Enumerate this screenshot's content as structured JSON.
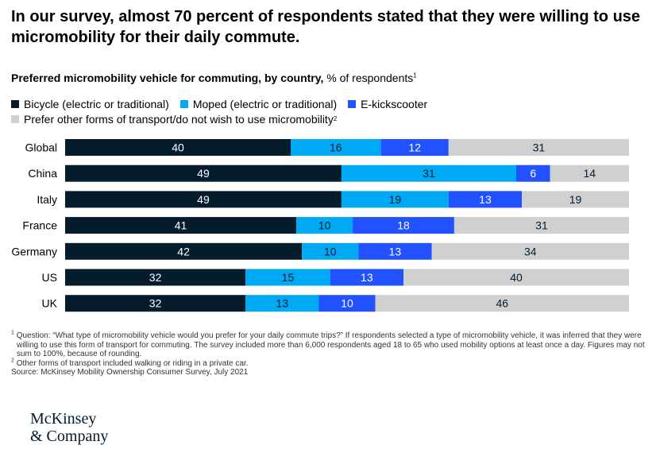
{
  "headline": "In our survey, almost 70 percent of respondents stated that they were willing to use micromobility for their daily commute.",
  "subtitle": {
    "bold": "Preferred micromobility vehicle for commuting, by country,",
    "unit": " % of respondents",
    "note_mark": "1"
  },
  "legend": [
    {
      "label": "Bicycle (electric or traditional)",
      "color": "#051c2c",
      "note_mark": ""
    },
    {
      "label": "Moped (electric or traditional)",
      "color": "#00a9f4",
      "note_mark": ""
    },
    {
      "label": "E-kickscooter",
      "color": "#2251ff",
      "note_mark": ""
    },
    {
      "label": "Prefer other forms of transport/do not wish to use micromobility",
      "color": "#d0d0d0",
      "note_mark": "2"
    }
  ],
  "chart_data": {
    "type": "bar",
    "orientation": "horizontal",
    "stacked": true,
    "categories": [
      "Global",
      "China",
      "Italy",
      "France",
      "Germany",
      "US",
      "UK"
    ],
    "series": [
      {
        "name": "Bicycle (electric or traditional)",
        "color": "#051c2c",
        "label_color": "#ffffff",
        "values": [
          40,
          49,
          49,
          41,
          42,
          32,
          32
        ]
      },
      {
        "name": "Moped (electric or traditional)",
        "color": "#00a9f4",
        "label_color": "#051c2c",
        "values": [
          16,
          31,
          19,
          10,
          10,
          15,
          13
        ]
      },
      {
        "name": "E-kickscooter",
        "color": "#2251ff",
        "label_color": "#ffffff",
        "values": [
          12,
          6,
          13,
          18,
          13,
          13,
          10
        ]
      },
      {
        "name": "Prefer other forms of transport/do not wish to use micromobility",
        "color": "#d0d0d0",
        "label_color": "#051c2c",
        "values": [
          31,
          14,
          19,
          31,
          34,
          40,
          46
        ]
      }
    ],
    "unit": "% of respondents",
    "data_labels": true
  },
  "footnotes": [
    {
      "mark": "1",
      "text": "Question: “What type of micromobility vehicle would you prefer for your daily commute trips?” If respondents selected a type of micromobility vehicle, it was inferred that they were willing to use this form of transport for commuting. The survey included more than 6,000 respondents aged 18 to 65 who used mobility options at least once a day. Figures may not sum to 100%, because of rounding."
    },
    {
      "mark": "2",
      "text": "Other forms of transport included walking or riding in a private car."
    }
  ],
  "source": "Source: McKinsey Mobility Ownership Consumer Survey, July 2021",
  "logo": {
    "line1": "McKinsey",
    "line2": "& Company"
  }
}
